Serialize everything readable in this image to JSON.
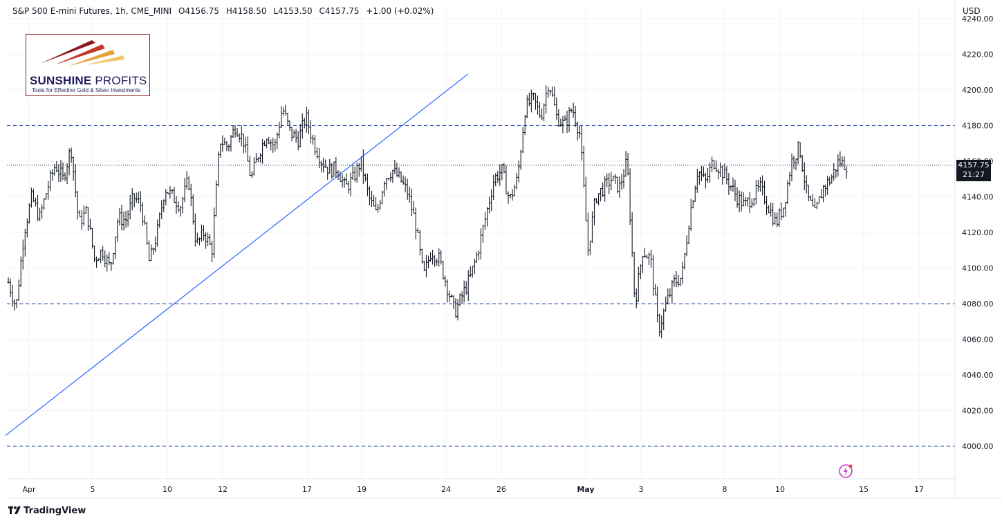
{
  "header": {
    "symbol": "S&P 500 E-mini Futures, 1h, CME_MINI",
    "open": "O4156.75",
    "high": "H4158.50",
    "low": "L4153.50",
    "close": "C4157.75",
    "change": "+1.00 (+0.02%)"
  },
  "currency": "USD",
  "logo": {
    "title_bold": "SUNSHINE",
    "title_light": "PROFITS",
    "subtitle": "Tools for Effective Gold & Silver Investments"
  },
  "last_price": {
    "value": "4157.75",
    "countdown": "21:27"
  },
  "footer": {
    "brand": "TradingView"
  },
  "colors": {
    "candle": "#131722",
    "trendline": "#2962ff",
    "hline": "#2a4ea8",
    "grid": "#f0f3fa"
  },
  "chart_data": {
    "type": "candlestick",
    "symbol": "ES1!",
    "interval": "1h",
    "y_ticks": [
      4000,
      4020,
      4040,
      4060,
      4080,
      4100,
      4120,
      4140,
      4160,
      4180,
      4200,
      4220,
      4240
    ],
    "ylim": [
      3977,
      4253
    ],
    "x_ticks": [
      "Apr",
      "5",
      "10",
      "12",
      "17",
      "19",
      "24",
      "26",
      "May",
      "3",
      "8",
      "10",
      "15",
      "17"
    ],
    "horizontal_levels": [
      4000,
      4080,
      4180
    ],
    "current_price_line": 4157.75,
    "trendline": {
      "from": {
        "x": "Mar 31",
        "y": 4006
      },
      "to": {
        "x": "Apr 24",
        "y": 4209
      }
    },
    "price_path": [
      [
        0,
        4092
      ],
      [
        1,
        4078
      ],
      [
        2,
        4120
      ],
      [
        3,
        4140
      ],
      [
        4,
        4128
      ],
      [
        5,
        4145
      ],
      [
        6,
        4158
      ],
      [
        7,
        4150
      ],
      [
        8,
        4168
      ],
      [
        9,
        4125
      ],
      [
        10,
        4132
      ],
      [
        11,
        4105
      ],
      [
        12,
        4110
      ],
      [
        13,
        4100
      ],
      [
        14,
        4128
      ],
      [
        15,
        4127
      ],
      [
        16,
        4140
      ],
      [
        17,
        4135
      ],
      [
        18,
        4103
      ],
      [
        19,
        4120
      ],
      [
        20,
        4145
      ],
      [
        21,
        4140
      ],
      [
        22,
        4135
      ],
      [
        23,
        4150
      ],
      [
        24,
        4113
      ],
      [
        25,
        4120
      ],
      [
        26,
        4110
      ],
      [
        27,
        4172
      ],
      [
        28,
        4168
      ],
      [
        29,
        4180
      ],
      [
        30,
        4172
      ],
      [
        31,
        4150
      ],
      [
        32,
        4165
      ],
      [
        33,
        4175
      ],
      [
        34,
        4168
      ],
      [
        35,
        4190
      ],
      [
        36,
        4176
      ],
      [
        37,
        4172
      ],
      [
        38,
        4185
      ],
      [
        39,
        4170
      ],
      [
        40,
        4160
      ],
      [
        41,
        4155
      ],
      [
        42,
        4156
      ],
      [
        43,
        4145
      ],
      [
        44,
        4150
      ],
      [
        45,
        4160
      ],
      [
        46,
        4140
      ],
      [
        47,
        4130
      ],
      [
        48,
        4150
      ],
      [
        49,
        4155
      ],
      [
        50,
        4150
      ],
      [
        51,
        4142
      ],
      [
        52,
        4125
      ],
      [
        53,
        4095
      ],
      [
        54,
        4110
      ],
      [
        55,
        4105
      ],
      [
        56,
        4090
      ],
      [
        57,
        4075
      ],
      [
        58,
        4085
      ],
      [
        59,
        4095
      ],
      [
        60,
        4110
      ],
      [
        61,
        4130
      ],
      [
        62,
        4150
      ],
      [
        63,
        4155
      ],
      [
        64,
        4138
      ],
      [
        65,
        4150
      ],
      [
        66,
        4190
      ],
      [
        67,
        4195
      ],
      [
        68,
        4185
      ],
      [
        69,
        4205
      ],
      [
        70,
        4185
      ],
      [
        71,
        4180
      ],
      [
        72,
        4190
      ],
      [
        73,
        4175
      ],
      [
        74,
        4110
      ],
      [
        75,
        4140
      ],
      [
        76,
        4145
      ],
      [
        77,
        4150
      ],
      [
        78,
        4145
      ],
      [
        79,
        4160
      ],
      [
        80,
        4080
      ],
      [
        81,
        4110
      ],
      [
        82,
        4105
      ],
      [
        83,
        4065
      ],
      [
        84,
        4080
      ],
      [
        85,
        4092
      ],
      [
        86,
        4095
      ],
      [
        87,
        4130
      ],
      [
        88,
        4155
      ],
      [
        89,
        4148
      ],
      [
        90,
        4160
      ],
      [
        91,
        4155
      ],
      [
        92,
        4148
      ],
      [
        93,
        4140
      ],
      [
        94,
        4135
      ],
      [
        95,
        4140
      ],
      [
        96,
        4145
      ],
      [
        97,
        4135
      ],
      [
        98,
        4125
      ],
      [
        99,
        4135
      ],
      [
        100,
        4160
      ],
      [
        101,
        4168
      ],
      [
        102,
        4140
      ],
      [
        103,
        4130
      ],
      [
        104,
        4145
      ],
      [
        105,
        4150
      ],
      [
        106,
        4160
      ],
      [
        107,
        4157.75
      ]
    ]
  }
}
